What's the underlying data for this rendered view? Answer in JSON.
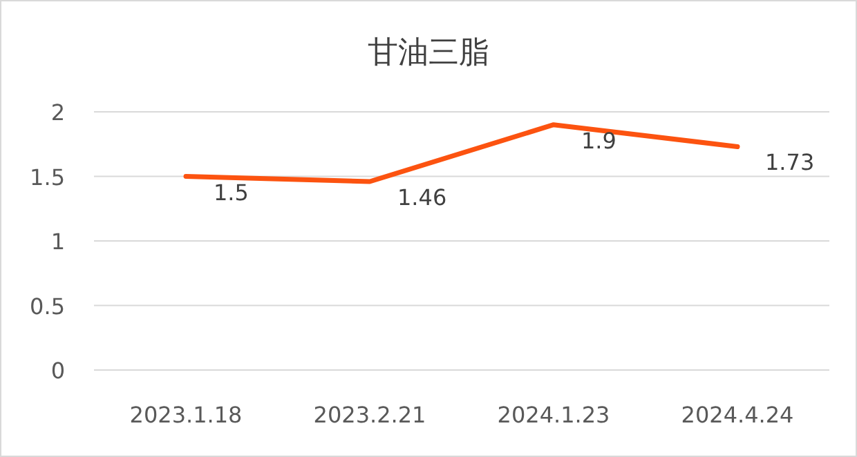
{
  "chart_data": {
    "type": "line",
    "title": "甘油三脂",
    "categories": [
      "2023.1.18",
      "2023.2.21",
      "2024.1.23",
      "2024.4.24"
    ],
    "values": [
      1.5,
      1.46,
      1.9,
      1.73
    ],
    "color": "#fc5310",
    "ylim": [
      0,
      2
    ],
    "yticks": [
      0,
      0.5,
      1,
      1.5,
      2
    ],
    "grid": "y",
    "data_labels": true,
    "marker": "none",
    "line_style": "solid"
  }
}
